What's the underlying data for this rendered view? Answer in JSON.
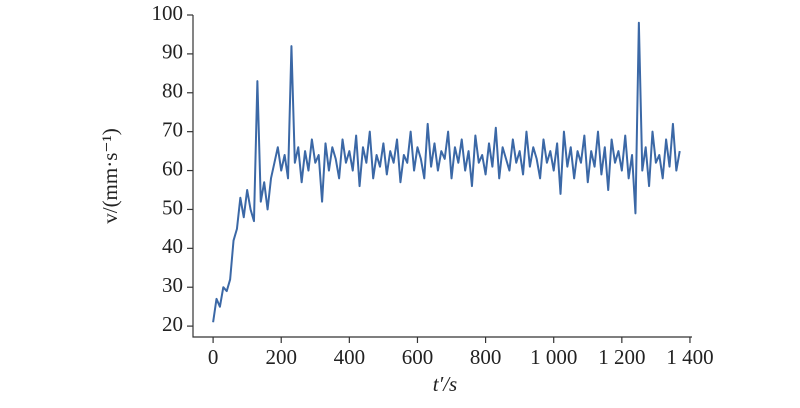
{
  "chart_data": {
    "type": "line",
    "x_label": "t′/s",
    "y_label": "v/(mm·s⁻¹)",
    "x": [
      0,
      10,
      20,
      30,
      40,
      50,
      60,
      70,
      80,
      90,
      100,
      110,
      120,
      130,
      140,
      150,
      160,
      170,
      180,
      190,
      200,
      210,
      220,
      230,
      240,
      250,
      260,
      270,
      280,
      290,
      300,
      310,
      320,
      330,
      340,
      350,
      360,
      370,
      380,
      390,
      400,
      410,
      420,
      430,
      440,
      450,
      460,
      470,
      480,
      490,
      500,
      510,
      520,
      530,
      540,
      550,
      560,
      570,
      580,
      590,
      600,
      610,
      620,
      630,
      640,
      650,
      660,
      670,
      680,
      690,
      700,
      710,
      720,
      730,
      740,
      750,
      760,
      770,
      780,
      790,
      800,
      810,
      820,
      830,
      840,
      850,
      860,
      870,
      880,
      890,
      900,
      910,
      920,
      930,
      940,
      950,
      960,
      970,
      980,
      990,
      1000,
      1010,
      1020,
      1030,
      1040,
      1050,
      1060,
      1070,
      1080,
      1090,
      1100,
      1110,
      1120,
      1130,
      1140,
      1150,
      1160,
      1170,
      1180,
      1190,
      1200,
      1210,
      1220,
      1230,
      1240,
      1250,
      1260,
      1270,
      1280,
      1290,
      1300,
      1310,
      1320,
      1330,
      1340,
      1350,
      1360,
      1370
    ],
    "series": [
      {
        "color": "#3b68a6",
        "values": [
          21,
          27,
          25,
          30,
          29,
          32,
          42,
          45,
          53,
          48,
          55,
          50,
          47,
          83,
          52,
          57,
          50,
          58,
          62,
          66,
          60,
          64,
          58,
          92,
          62,
          66,
          57,
          65,
          60,
          68,
          62,
          64,
          52,
          67,
          60,
          66,
          63,
          58,
          68,
          62,
          65,
          60,
          69,
          56,
          66,
          62,
          70,
          58,
          64,
          61,
          67,
          59,
          65,
          62,
          68,
          57,
          64,
          62,
          70,
          60,
          66,
          63,
          58,
          72,
          61,
          67,
          60,
          65,
          63,
          70,
          58,
          66,
          62,
          68,
          60,
          65,
          56,
          69,
          62,
          64,
          59,
          67,
          61,
          71,
          58,
          66,
          63,
          60,
          68,
          62,
          65,
          59,
          70,
          61,
          66,
          63,
          58,
          68,
          62,
          65,
          60,
          67,
          54,
          70,
          61,
          66,
          58,
          65,
          62,
          69,
          57,
          65,
          61,
          70,
          59,
          66,
          55,
          68,
          62,
          65,
          60,
          69,
          58,
          64,
          49,
          98,
          60,
          66,
          56,
          70,
          62,
          64,
          58,
          68,
          61,
          72,
          60,
          65
        ]
      }
    ],
    "xlim": [
      -59,
      1406
    ],
    "ylim": [
      17.2,
      100
    ],
    "xticks": [
      0,
      200,
      400,
      600,
      800,
      {
        "value": 1000,
        "label": "1 000"
      },
      {
        "value": 1200,
        "label": "1 200"
      },
      {
        "value": 1400,
        "label": "1 400"
      }
    ],
    "yticks": [
      20,
      30,
      40,
      50,
      60,
      70,
      80,
      90,
      100
    ],
    "grid": false
  }
}
